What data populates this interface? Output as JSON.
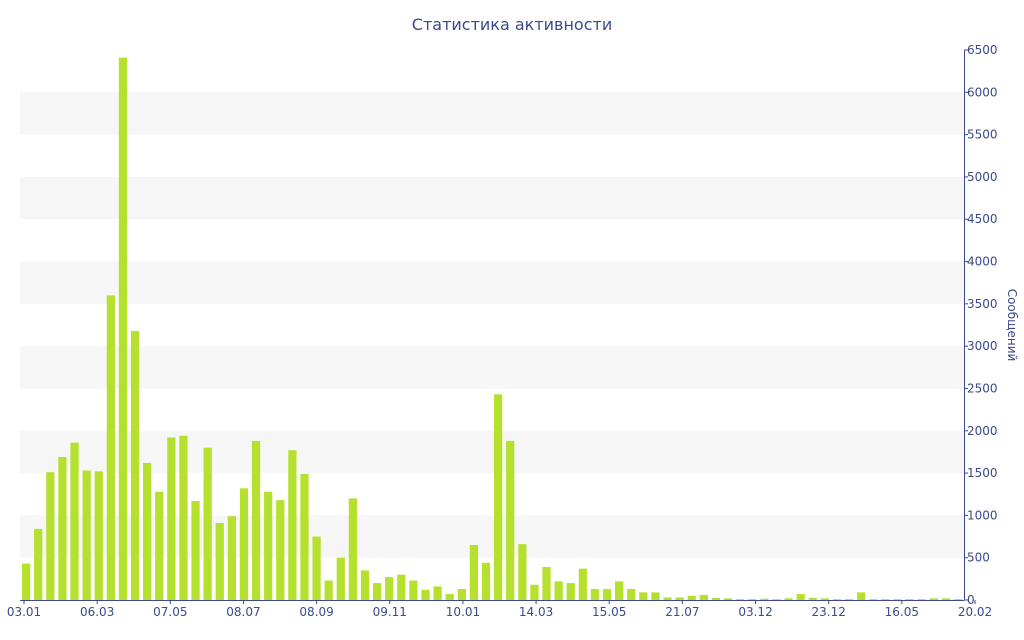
{
  "chart_data": {
    "type": "bar",
    "title": "Статистика активности",
    "ylabel": "Сообщений",
    "xlabel": "",
    "ylim": [
      0,
      6500
    ],
    "y_ticks": [
      0,
      500,
      1000,
      1500,
      2000,
      2500,
      3000,
      3500,
      4000,
      4500,
      5000,
      5500,
      6000,
      6500
    ],
    "x_tick_labels": [
      "03.01",
      "06.03",
      "07.05",
      "08.07",
      "08.09",
      "09.11",
      "10.01",
      "14.03",
      "15.05",
      "21.07",
      "03.12",
      "23.12",
      "16.05",
      "20.02"
    ],
    "grid": "alternating horizontal bands",
    "legend": "none",
    "bar_color": "#b5e02d",
    "axis_color": "#3a4a8c",
    "values": [
      430,
      840,
      1510,
      1690,
      1860,
      1530,
      1520,
      3600,
      6410,
      3180,
      1620,
      1280,
      1920,
      1940,
      1170,
      1800,
      910,
      990,
      1320,
      1880,
      1280,
      1180,
      1770,
      1490,
      750,
      230,
      500,
      1200,
      350,
      200,
      270,
      300,
      230,
      120,
      160,
      70,
      130,
      650,
      440,
      2430,
      1880,
      660,
      180,
      390,
      220,
      200,
      370,
      130,
      130,
      220,
      130,
      90,
      90,
      30,
      30,
      50,
      60,
      25,
      20,
      10,
      10,
      15,
      10,
      20,
      70,
      25,
      20,
      10,
      10,
      90,
      10,
      10,
      10,
      10,
      10,
      20,
      20,
      10
    ]
  }
}
